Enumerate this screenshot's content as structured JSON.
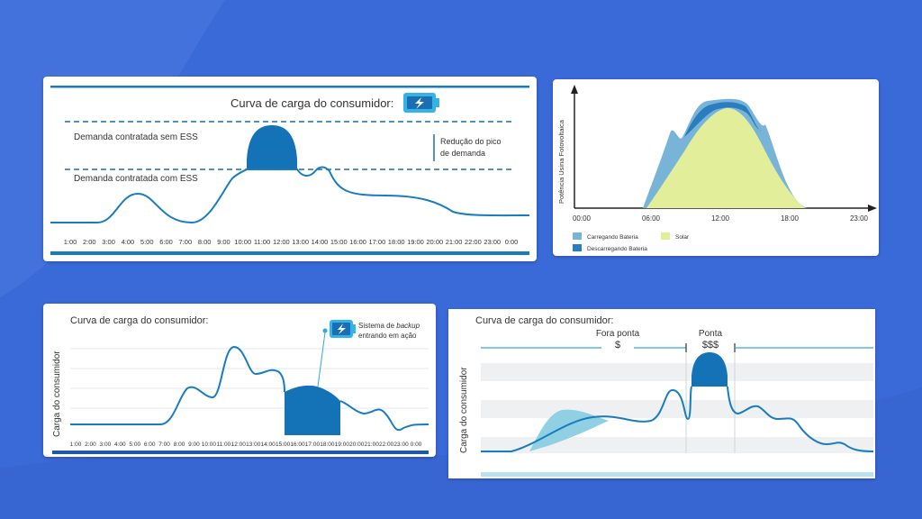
{
  "colors": {
    "background": "#3a69d8",
    "line": "#1a7cc0",
    "fill_dark": "#1473b7",
    "fill_light": "#8fd0e3",
    "solar": "#e2ee9a",
    "charge": "#78b4d8",
    "discharge": "#2a7dc0"
  },
  "chart_data": [
    {
      "type": "line",
      "title": "Curva de carga do consumidor:",
      "icon": "battery-bolt-icon",
      "x": [
        "1:00",
        "2:00",
        "3:00",
        "4:00",
        "5:00",
        "6:00",
        "7:00",
        "8:00",
        "9:00",
        "10:00",
        "11:00",
        "12:00",
        "13:00",
        "14:00",
        "15:00",
        "16:00",
        "17:00",
        "18:00",
        "19:00",
        "20:00",
        "21:00",
        "22:00",
        "23:00",
        "0:00"
      ],
      "series": [
        {
          "values": [
            0.1,
            0.1,
            0.15,
            0.4,
            0.4,
            0.25,
            0.1,
            0.15,
            0.55,
            0.9,
            1.35,
            1.35,
            0.6,
            0.7,
            0.45,
            0.4,
            0.35,
            0.35,
            0.3,
            0.2,
            0.18,
            0.15,
            0.15,
            0.15
          ]
        }
      ],
      "annotations": {
        "line_high": "Demanda contratada sem ESS",
        "line_low": "Demanda contratada com ESS",
        "reduction": [
          "Redução do pico",
          "de demanda"
        ]
      }
    },
    {
      "type": "area",
      "ylabel": "Potência Usina Fotovoltaica",
      "x": [
        "00:00",
        "06:00",
        "12:00",
        "18:00",
        "23:00"
      ],
      "legend": [
        {
          "label": "Carregando Bateria",
          "color": "#78b4d8"
        },
        {
          "label": "Solar",
          "color": "#e2ee9a"
        },
        {
          "label": "Descarregando Bateria",
          "color": "#2a7dc0"
        }
      ]
    },
    {
      "type": "line",
      "title": "Curva de carga do consumidor:",
      "ylabel": "Carga do consumidor",
      "x": [
        "1:00",
        "2:00",
        "3:00",
        "4:00",
        "5:00",
        "6:00",
        "7:00",
        "8:00",
        "9:00",
        "10:00",
        "11:00",
        "12:00",
        "13:00",
        "14:00",
        "15:00",
        "16:00",
        "17:00",
        "18:00",
        "19:00",
        "20:00",
        "21:00",
        "22:00",
        "23:00",
        "0:00"
      ],
      "series": [
        {
          "values": [
            0.0,
            0.0,
            0.0,
            0.0,
            0.0,
            0.05,
            0.15,
            0.4,
            0.75,
            0.95,
            0.9,
            0.55,
            0.7,
            0.5,
            0.4,
            0.1,
            0.45,
            0.45,
            0.3,
            0.35,
            0.3,
            0.15,
            0.05,
            0.0
          ]
        }
      ],
      "annotation": [
        "Sistema de",
        "backup",
        "entrando em ação"
      ]
    },
    {
      "type": "line",
      "title": "Curva de carga do consumidor:",
      "ylabel": "Carga do consumidor",
      "zones": [
        {
          "label": "Fora ponta",
          "sub": "$"
        },
        {
          "label": "Ponta",
          "sub": "$$$"
        }
      ]
    }
  ]
}
